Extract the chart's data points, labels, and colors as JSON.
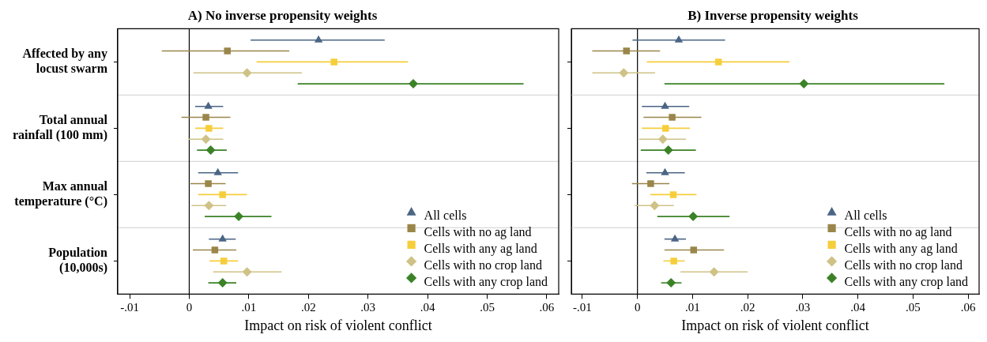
{
  "chart_data": [
    {
      "type": "scatter",
      "orientation": "horizontal",
      "title": "A) No inverse propensity weights",
      "xlabel": "Impact on risk of violent conflict",
      "categories": [
        "Affected by any locust swarm",
        "Total annual rainfall (100 mm)",
        "Max annual temperature (°C)",
        "Population (10,000s)"
      ],
      "xlim": [
        -0.012,
        0.062
      ],
      "xticks": [
        {
          "value": -0.01,
          "label": "-.01"
        },
        0,
        {
          "value": 0.01,
          "label": ".01"
        },
        {
          "value": 0.02,
          "label": ".02"
        },
        {
          "value": 0.03,
          "label": ".03"
        },
        {
          "value": 0.04,
          "label": ".04"
        },
        {
          "value": 0.05,
          "label": ".05"
        },
        {
          "value": 0.06,
          "label": ".06"
        }
      ],
      "grid": "y",
      "legend": "bottom right",
      "ref_lines": [
        {
          "axis": "x",
          "value": 0,
          "color": "#000000"
        }
      ],
      "series": [
        {
          "name": "All cells",
          "color": "#4a6585",
          "marker": "triangle",
          "values": [
            0.0217,
            0.0032,
            0.0048,
            0.0056
          ],
          "errors": [
            [
              0.0103,
              0.0328
            ],
            [
              0.001,
              0.0057
            ],
            [
              0.0015,
              0.0082
            ],
            [
              0.0033,
              0.0078
            ]
          ]
        },
        {
          "name": "Cells with no ag land",
          "color": "#9a864a",
          "marker": "square",
          "values": [
            0.0064,
            0.0028,
            0.0032,
            0.0043
          ],
          "errors": [
            [
              -0.0046,
              0.0168
            ],
            [
              -0.0013,
              0.0069
            ],
            [
              0.0002,
              0.0061
            ],
            [
              0.0006,
              0.0079
            ]
          ]
        },
        {
          "name": "Cells with any ag land",
          "color": "#f6ce3c",
          "marker": "square",
          "values": [
            0.0243,
            0.0033,
            0.0056,
            0.0058
          ],
          "errors": [
            [
              0.0113,
              0.0367
            ],
            [
              0.001,
              0.0057
            ],
            [
              0.0015,
              0.0097
            ],
            [
              0.0034,
              0.0082
            ]
          ]
        },
        {
          "name": "Cells with no crop land",
          "color": "#cfc286",
          "marker": "diamond",
          "values": [
            0.0097,
            0.0028,
            0.0033,
            0.0097
          ],
          "errors": [
            [
              0.0007,
              0.0189
            ],
            [
              -0.0001,
              0.0057
            ],
            [
              0.0004,
              0.0062
            ],
            [
              0.004,
              0.0155
            ]
          ]
        },
        {
          "name": "Cells with any crop land",
          "color": "#3b8227",
          "marker": "diamond",
          "values": [
            0.0376,
            0.0036,
            0.0083,
            0.0056
          ],
          "errors": [
            [
              0.0182,
              0.0561
            ],
            [
              0.0013,
              0.0063
            ],
            [
              0.0026,
              0.0138
            ],
            [
              0.0032,
              0.0079
            ]
          ]
        }
      ]
    },
    {
      "type": "scatter",
      "orientation": "horizontal",
      "title": "B) Inverse propensity weights",
      "xlabel": "Impact on risk of violent conflict",
      "tick_labels": "x",
      "categories": [
        null,
        null,
        null,
        null
      ],
      "xlim": [
        -0.012,
        0.062
      ],
      "xticks": [
        {
          "value": -0.01,
          "label": "-.01"
        },
        0,
        {
          "value": 0.01,
          "label": ".01"
        },
        {
          "value": 0.02,
          "label": ".02"
        },
        {
          "value": 0.03,
          "label": ".03"
        },
        {
          "value": 0.04,
          "label": ".04"
        },
        {
          "value": 0.05,
          "label": ".05"
        },
        {
          "value": 0.06,
          "label": ".06"
        }
      ],
      "grid": "y",
      "legend": "bottom right",
      "ref_lines": [
        {
          "axis": "x",
          "value": 0,
          "color": "#000000"
        }
      ],
      "series": [
        {
          "name": "All cells",
          "color": "#4a6585",
          "marker": "triangle",
          "values": [
            0.0075,
            0.005,
            0.005,
            0.0068
          ],
          "errors": [
            [
              -0.0009,
              0.0159
            ],
            [
              0.0008,
              0.0094
            ],
            [
              0.0016,
              0.0086
            ],
            [
              0.0049,
              0.0088
            ]
          ]
        },
        {
          "name": "Cells with no ag land",
          "color": "#9a864a",
          "marker": "square",
          "values": [
            -0.002,
            0.0063,
            0.0024,
            0.0102
          ],
          "errors": [
            [
              -0.0082,
              0.0041
            ],
            [
              0.0011,
              0.0116
            ],
            [
              -0.001,
              0.0058
            ],
            [
              0.0049,
              0.0157
            ]
          ]
        },
        {
          "name": "Cells with any ag land",
          "color": "#f6ce3c",
          "marker": "square",
          "values": [
            0.0147,
            0.0051,
            0.0065,
            0.0066
          ],
          "errors": [
            [
              0.0017,
              0.0276
            ],
            [
              0.0008,
              0.0095
            ],
            [
              0.0023,
              0.0107
            ],
            [
              0.0047,
              0.0086
            ]
          ]
        },
        {
          "name": "Cells with no crop land",
          "color": "#cfc286",
          "marker": "diamond",
          "values": [
            -0.0025,
            0.0046,
            0.0031,
            0.0139
          ],
          "errors": [
            [
              -0.0082,
              0.0032
            ],
            [
              0.0003,
              0.0088
            ],
            [
              -0.0005,
              0.0066
            ],
            [
              0.0078,
              0.02
            ]
          ]
        },
        {
          "name": "Cells with any crop land",
          "color": "#3b8227",
          "marker": "diamond",
          "values": [
            0.0302,
            0.0056,
            0.0101,
            0.0061
          ],
          "errors": [
            [
              0.0049,
              0.0557
            ],
            [
              0.0006,
              0.0106
            ],
            [
              0.0036,
              0.0167
            ],
            [
              0.0043,
              0.008
            ]
          ]
        }
      ]
    }
  ]
}
